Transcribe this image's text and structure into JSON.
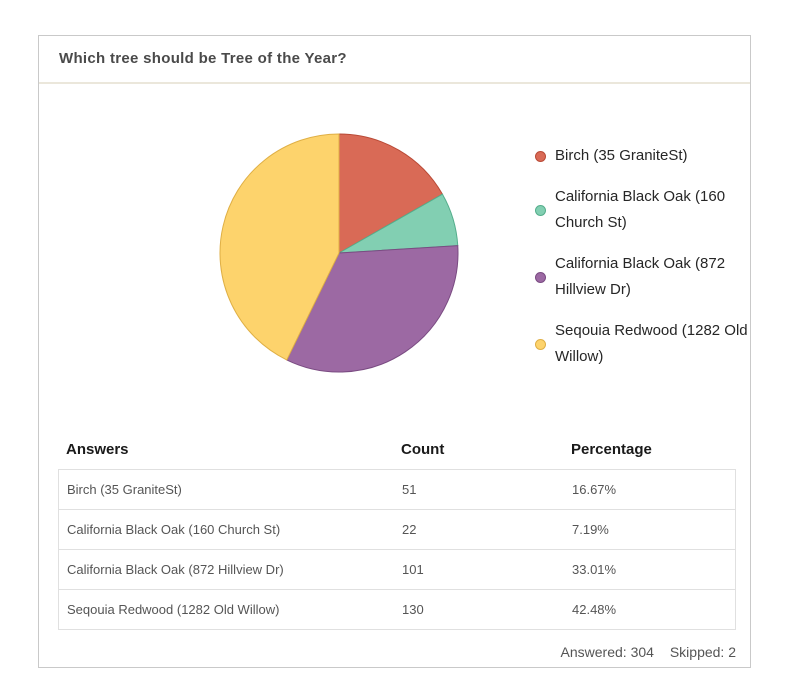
{
  "question": {
    "title": "Which tree should be Tree of the Year?"
  },
  "chart_data": {
    "type": "pie",
    "title": "Which tree should be Tree of the Year?",
    "categories": [
      "Birch (35 GraniteSt)",
      "California Black Oak (160 Church St)",
      "California Black Oak (872 Hillview Dr)",
      "Seqouia Redwood (1282 Old Willow)"
    ],
    "values": [
      51,
      22,
      101,
      130
    ],
    "percent_labels": [
      "16.67%",
      "7.19%",
      "33.01%",
      "42.48%"
    ],
    "colors": [
      "#D96A56",
      "#82CFB2",
      "#9C69A3",
      "#FDD36C"
    ],
    "edge_colors": [
      "#B94A36",
      "#55AE8C",
      "#7A4B82",
      "#DFAF45"
    ],
    "start_angle": "top",
    "direction": "clockwise",
    "legend_position": "right"
  },
  "table": {
    "headers": [
      "Answers",
      "Count",
      "Percentage"
    ],
    "rows": [
      [
        "Birch (35 GraniteSt)",
        "51",
        "16.67%"
      ],
      [
        "California Black Oak (160 Church St)",
        "22",
        "7.19%"
      ],
      [
        "California Black Oak (872 Hillview Dr)",
        "101",
        "33.01%"
      ],
      [
        "Seqouia Redwood (1282 Old Willow)",
        "130",
        "42.48%"
      ]
    ]
  },
  "footer": {
    "answered": "Answered: 304",
    "skipped": "Skipped: 2"
  }
}
